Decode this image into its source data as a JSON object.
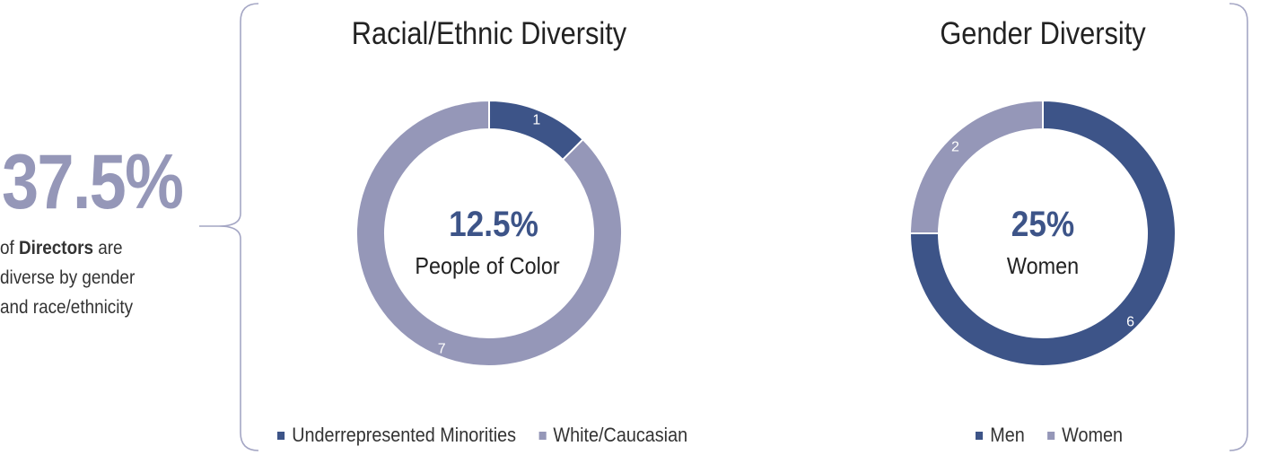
{
  "summary": {
    "value": "37.5%",
    "caption_prefix": "of ",
    "caption_bold": "Directors",
    "caption_suffix": " are diverse by gender and race/ethnicity"
  },
  "colors": {
    "dark": "#3d5488",
    "light": "#9597b8",
    "bracket": "#a4a6c4"
  },
  "chart_data": [
    {
      "type": "pie",
      "title": "Racial/Ethnic Diversity",
      "center_value": "12.5%",
      "center_label": "People of Color",
      "legend_position": "bottom",
      "slices": [
        {
          "name": "Underrepresented Minorities",
          "value": 1,
          "label": "1",
          "color": "#3d5488"
        },
        {
          "name": "White/Caucasian",
          "value": 7,
          "label": "7",
          "color": "#9597b8"
        }
      ]
    },
    {
      "type": "pie",
      "title": "Gender Diversity",
      "center_value": "25%",
      "center_label": "Women",
      "legend_position": "bottom",
      "slices": [
        {
          "name": "Men",
          "value": 6,
          "label": "6",
          "color": "#3d5488"
        },
        {
          "name": "Women",
          "value": 2,
          "label": "2",
          "color": "#9597b8"
        }
      ]
    }
  ]
}
